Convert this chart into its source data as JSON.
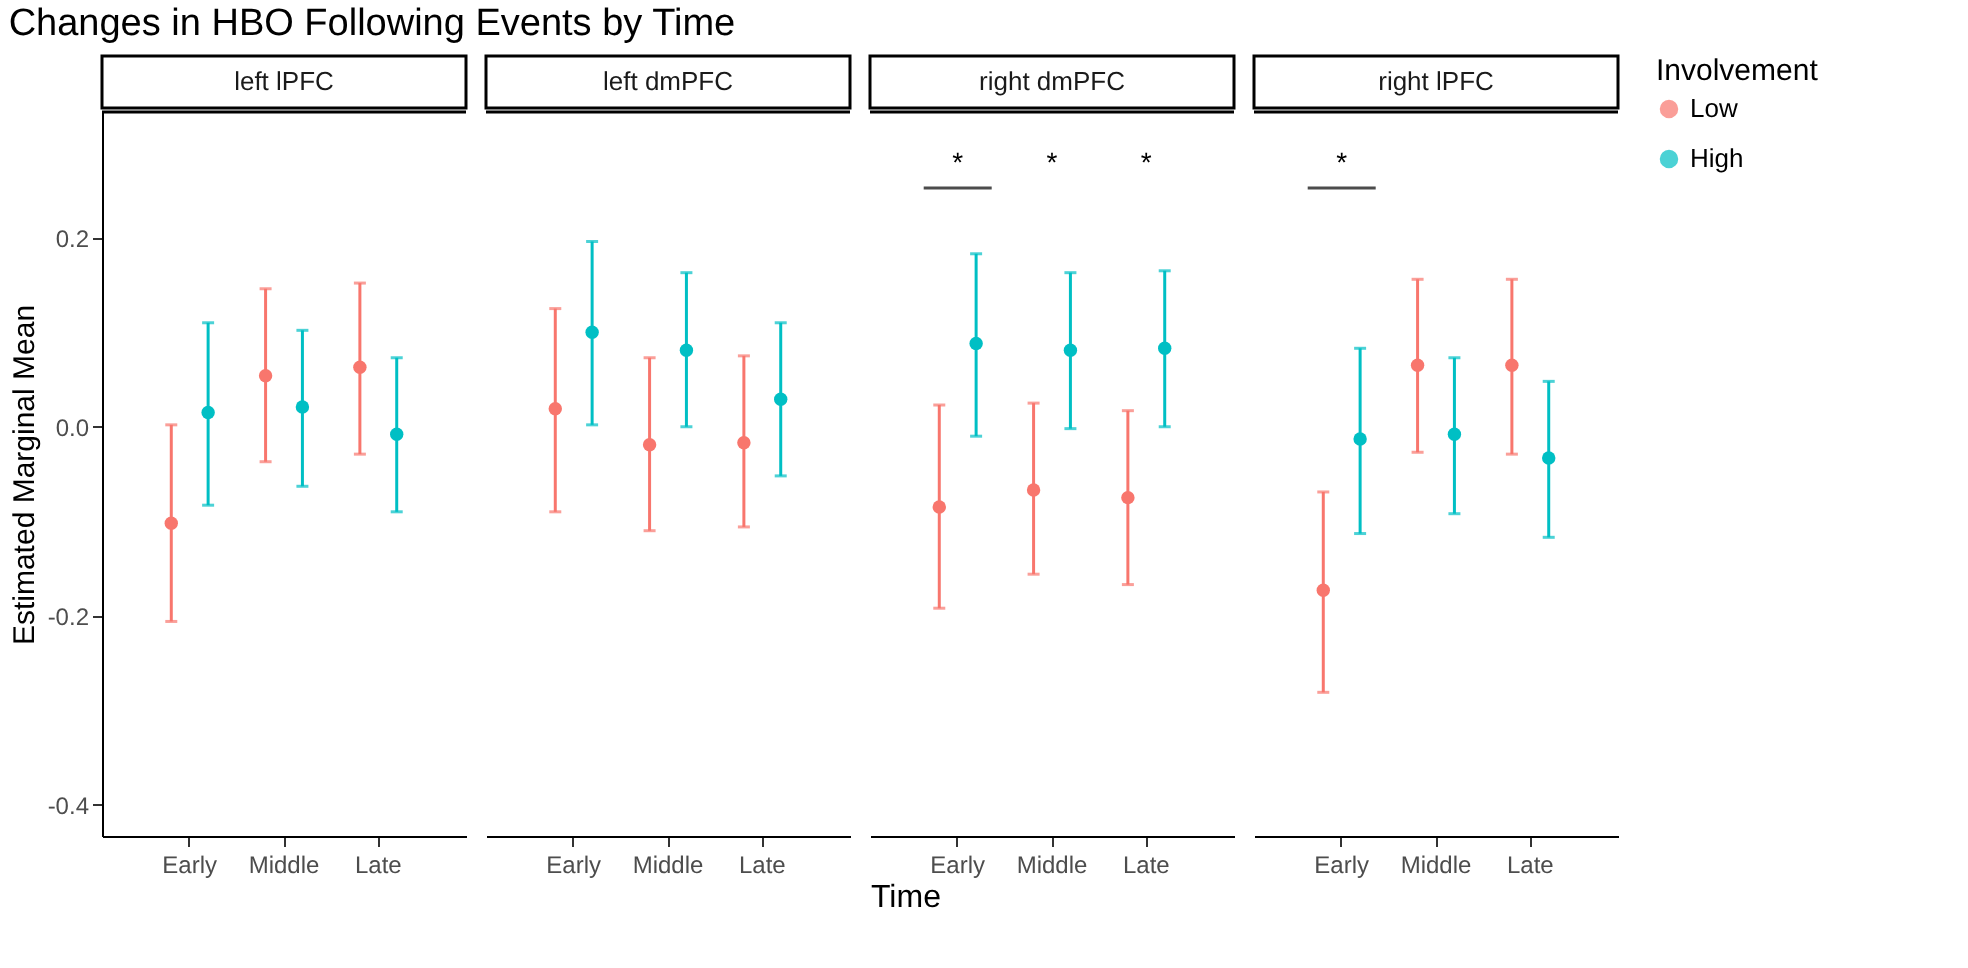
{
  "chart_data": [
    {
      "type": "scatter",
      "title": "Changes in HBO Following Events by Time",
      "subtitle": "left lPFC",
      "ylabel": "Estimated Marginal Mean",
      "categories": [
        "Early",
        "Middle",
        "Late"
      ],
      "ylim": [
        -0.433,
        0.333
      ],
      "yticks": [
        {
          "value": -0.4,
          "label": "-0.4"
        },
        {
          "value": -0.2,
          "label": "-0.2"
        },
        {
          "value": 0,
          "label": "0.0"
        },
        {
          "value": 0.2,
          "label": "0.2"
        }
      ],
      "marker": "circle",
      "legend": "right",
      "legend_title": "Involvement",
      "series": [
        {
          "name": "Low",
          "color": "#f8766d",
          "values": [
            -0.102,
            0.054,
            0.063
          ],
          "errors": [
            [
              -0.206,
              0.002
            ],
            [
              -0.037,
              0.146
            ],
            [
              -0.029,
              0.152
            ]
          ]
        },
        {
          "name": "High",
          "color": "#00bfc4",
          "values": [
            0.015,
            0.021,
            -0.008
          ],
          "errors": [
            [
              -0.083,
              0.11
            ],
            [
              -0.063,
              0.102
            ],
            [
              -0.09,
              0.073
            ]
          ]
        }
      ]
    },
    {
      "type": "scatter",
      "subtitle": "left dmPFC",
      "categories": [
        "Early",
        "Middle",
        "Late"
      ],
      "ylim": [
        -0.433,
        0.333
      ],
      "tick_labels": "x",
      "marker": "circle",
      "series": [
        {
          "name": "Low",
          "color": "#f8766d",
          "values": [
            0.019,
            -0.019,
            -0.017
          ],
          "errors": [
            [
              -0.09,
              0.125
            ],
            [
              -0.11,
              0.073
            ],
            [
              -0.106,
              0.075
            ]
          ]
        },
        {
          "name": "High",
          "color": "#00bfc4",
          "values": [
            0.1,
            0.081,
            0.029
          ],
          "errors": [
            [
              0.002,
              0.196
            ],
            [
              0,
              0.163
            ],
            [
              -0.052,
              0.11
            ]
          ]
        }
      ]
    },
    {
      "type": "scatter",
      "subtitle": "right dmPFC",
      "xlabel": "Time",
      "categories": [
        "Early",
        "Middle",
        "Late"
      ],
      "ylim": [
        -0.433,
        0.333
      ],
      "tick_labels": "x",
      "marker": "circle",
      "annotations": [
        "*",
        "*",
        "*"
      ],
      "series": [
        {
          "name": "Low",
          "color": "#f8766d",
          "values": [
            -0.085,
            -0.067,
            -0.075
          ],
          "errors": [
            [
              -0.192,
              0.023
            ],
            [
              -0.156,
              0.025
            ],
            [
              -0.167,
              0.017
            ]
          ]
        },
        {
          "name": "High",
          "color": "#00bfc4",
          "values": [
            0.088,
            0.081,
            0.083
          ],
          "errors": [
            [
              -0.01,
              0.183
            ],
            [
              -0.002,
              0.163
            ],
            [
              0,
              0.165
            ]
          ]
        }
      ]
    },
    {
      "type": "scatter",
      "subtitle": "right lPFC",
      "categories": [
        "Early",
        "Middle",
        "Late"
      ],
      "ylim": [
        -0.433,
        0.333
      ],
      "tick_labels": "x",
      "marker": "circle",
      "annotations": [
        "*"
      ],
      "series": [
        {
          "name": "Low",
          "color": "#f8766d",
          "values": [
            -0.173,
            0.065,
            0.065
          ],
          "errors": [
            [
              -0.281,
              -0.069
            ],
            [
              -0.027,
              0.156
            ],
            [
              -0.029,
              0.156
            ]
          ]
        },
        {
          "name": "High",
          "color": "#00bfc4",
          "values": [
            -0.013,
            -0.008,
            -0.033
          ],
          "errors": [
            [
              -0.113,
              0.083
            ],
            [
              -0.092,
              0.073
            ],
            [
              -0.117,
              0.048
            ]
          ]
        }
      ]
    }
  ]
}
